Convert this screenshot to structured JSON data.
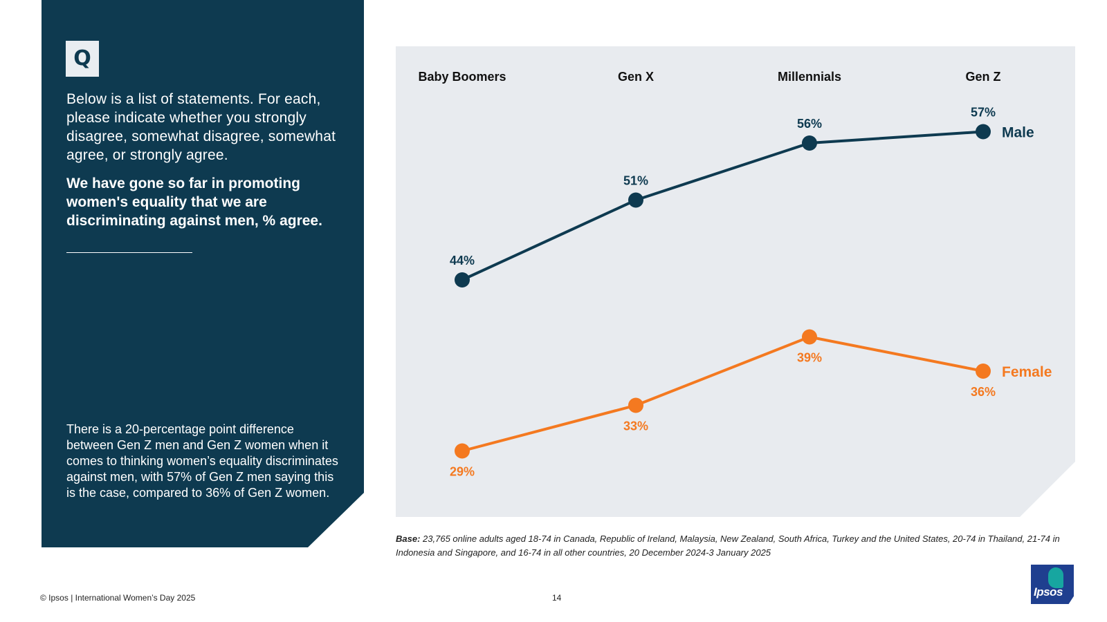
{
  "panel": {
    "badge": "Q",
    "question": "Below is a list of statements. For each, please indicate whether you strongly disagree, somewhat disagree, somewhat agree, or strongly agree.",
    "statement": "We have gone so far in promoting women's equality that we are discriminating against men, % agree.",
    "insight": "There is a 20-percentage point difference between Gen Z men and Gen Z women when it comes to thinking women’s equality discriminates against men, with 57% of Gen Z men saying this is the case, compared to 36% of Gen Z women."
  },
  "chart_data": {
    "type": "line",
    "title": "",
    "categories": [
      "Baby Boomers",
      "Gen X",
      "Millennials",
      "Gen Z"
    ],
    "series": [
      {
        "name": "Male",
        "values": [
          44,
          51,
          56,
          57
        ],
        "color": "#0e3a50"
      },
      {
        "name": "Female",
        "values": [
          29,
          33,
          39,
          36
        ],
        "color": "#f47920"
      }
    ],
    "value_suffix": "%",
    "ylim": [
      25,
      60
    ],
    "grid": false,
    "legend": "end-of-line"
  },
  "footer": {
    "base_label": "Base:",
    "base_text": " 23,765 online adults aged 18-74 in Canada, Republic of Ireland, Malaysia, New Zealand, South Africa, Turkey and the United States, 20-74 in Thailand, 21-74 in Indonesia and Singapore, and 16-74 in all other countries, 20 December 2024-3 January 2025",
    "copyright": "© Ipsos | International Women’s Day 2025",
    "page_number": "14",
    "logo_text": "Ipsos"
  },
  "colors": {
    "navy": "#0e3a50",
    "orange": "#f47920",
    "chart_bg": "#e8ebef"
  }
}
